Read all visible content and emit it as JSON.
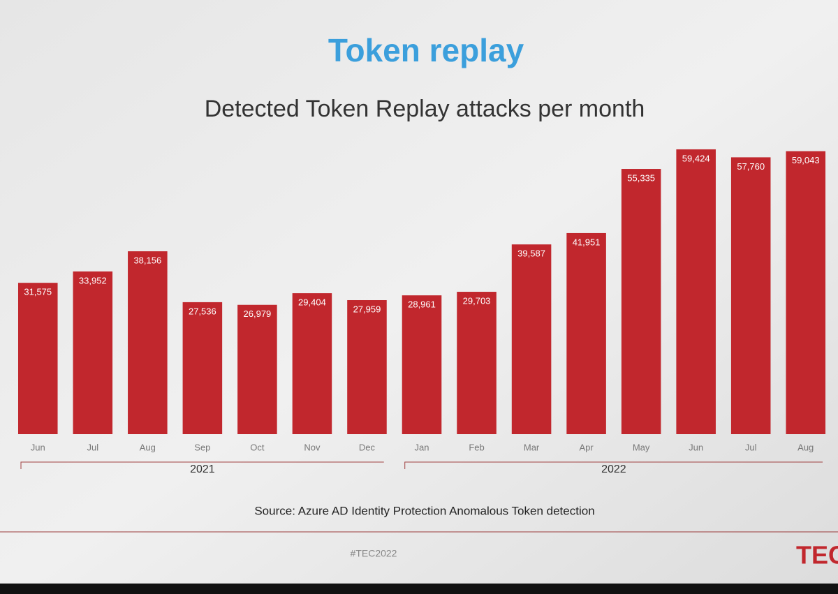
{
  "chart_data": {
    "type": "bar",
    "title": "Token replay",
    "subtitle": "Detected Token Replay attacks per month",
    "categories": [
      "Jun",
      "Jul",
      "Aug",
      "Sep",
      "Oct",
      "Nov",
      "Dec",
      "Jan",
      "Feb",
      "Mar",
      "Apr",
      "May",
      "Jun",
      "Jul",
      "Aug"
    ],
    "values": [
      31575,
      33952,
      38156,
      27536,
      26979,
      29404,
      27959,
      28961,
      29703,
      39587,
      41951,
      55335,
      59424,
      57760,
      59043
    ],
    "value_labels": [
      "31,575",
      "33,952",
      "38,156",
      "27,536",
      "26,979",
      "29,404",
      "27,959",
      "28,961",
      "29,703",
      "39,587",
      "41,951",
      "55,335",
      "59,424",
      "57,760",
      "59,043"
    ],
    "color": "#c1272d",
    "ylim": [
      0,
      60000
    ],
    "x_groups": [
      {
        "label": "2021",
        "count": 7
      },
      {
        "label": "2022",
        "count": 8
      }
    ],
    "source": "Source: Azure AD Identity Protection Anomalous Token detection",
    "footer": "#TEC2022",
    "logo": "TEC"
  }
}
